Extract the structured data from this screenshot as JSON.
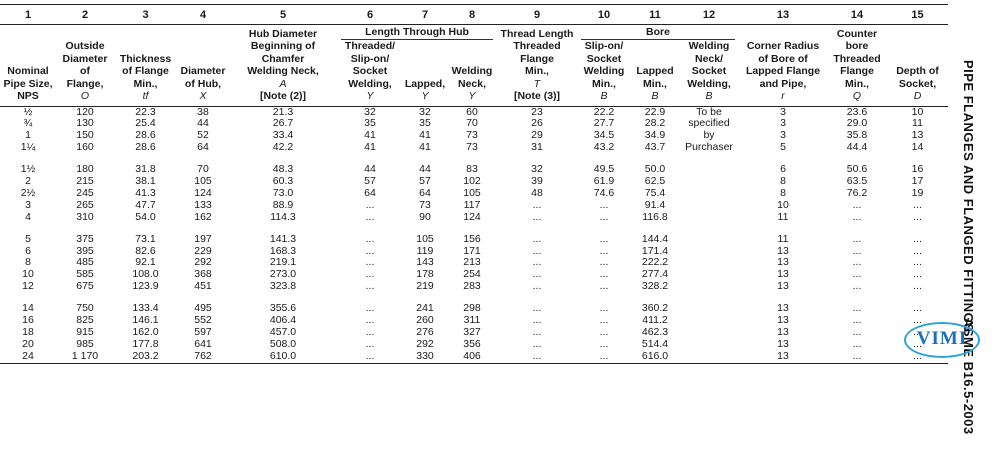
{
  "col_numbers": [
    "1",
    "2",
    "3",
    "4",
    "5",
    "6",
    "7",
    "8",
    "9",
    "10",
    "11",
    "12",
    "13",
    "14",
    "15"
  ],
  "groups": {
    "length_through_hub": "Length Through Hub",
    "bore": "Bore"
  },
  "headers": {
    "c1": {
      "lines": [
        "Nominal",
        "Pipe Size,",
        "NPS"
      ],
      "sym": ""
    },
    "c2": {
      "lines": [
        "Outside",
        "Diameter",
        "of",
        "Flange,"
      ],
      "sym": "O"
    },
    "c3": {
      "lines": [
        "Thickness",
        "of Flange",
        "Min.,"
      ],
      "sym": "tf"
    },
    "c4": {
      "lines": [
        "Diameter",
        "of Hub,"
      ],
      "sym": "X"
    },
    "c5": {
      "lines": [
        "Hub Diameter",
        "Beginning of",
        "Chamfer",
        "Welding Neck,"
      ],
      "sym": "A",
      "note": "[Note (2)]"
    },
    "c6": {
      "lines": [
        "Threaded/",
        "Slip-on/",
        "Socket",
        "Welding,"
      ],
      "sym": "Y"
    },
    "c7": {
      "lines": [
        "Lapped,"
      ],
      "sym": "Y"
    },
    "c8": {
      "lines": [
        "Welding",
        "Neck,"
      ],
      "sym": "Y"
    },
    "c9": {
      "lines": [
        "Thread Length",
        "Threaded",
        "Flange",
        "Min.,"
      ],
      "sym": "T",
      "note": "[Note (3)]"
    },
    "c10": {
      "lines": [
        "Slip-on/",
        "Socket",
        "Welding",
        "Min.,"
      ],
      "sym": "B"
    },
    "c11": {
      "lines": [
        "Lapped",
        "Min.,"
      ],
      "sym": "B"
    },
    "c12": {
      "lines": [
        "Welding",
        "Neck/",
        "Socket",
        "Welding,"
      ],
      "sym": "B"
    },
    "c13": {
      "lines": [
        "Corner Radius",
        "of Bore of",
        "Lapped Flange",
        "and Pipe,"
      ],
      "sym": "r"
    },
    "c14": {
      "lines": [
        "Counter",
        "bore",
        "Threaded",
        "Flange",
        "Min.,"
      ],
      "sym": "Q"
    },
    "c15": {
      "lines": [
        "Depth of",
        "Socket,"
      ],
      "sym": "D"
    }
  },
  "c12_note": [
    "To be",
    "specified",
    "by",
    "Purchaser"
  ],
  "rows": [
    [
      "½",
      "120",
      "22.3",
      "38",
      "21.3",
      "32",
      "32",
      "60",
      "23",
      "22.2",
      "22.9",
      "",
      "3",
      "23.6",
      "10"
    ],
    [
      "¾",
      "130",
      "25.4",
      "44",
      "26.7",
      "35",
      "35",
      "70",
      "26",
      "27.7",
      "28.2",
      "",
      "3",
      "29.0",
      "11"
    ],
    [
      "1",
      "150",
      "28.6",
      "52",
      "33.4",
      "41",
      "41",
      "73",
      "29",
      "34.5",
      "34.9",
      "",
      "3",
      "35.8",
      "13"
    ],
    [
      "1¼",
      "160",
      "28.6",
      "64",
      "42.2",
      "41",
      "41",
      "73",
      "31",
      "43.2",
      "43.7",
      "",
      "5",
      "44.4",
      "14"
    ],
    null,
    [
      "1½",
      "180",
      "31.8",
      "70",
      "48.3",
      "44",
      "44",
      "83",
      "32",
      "49.5",
      "50.0",
      "",
      "6",
      "50.6",
      "16"
    ],
    [
      "2",
      "215",
      "38.1",
      "105",
      "60.3",
      "57",
      "57",
      "102",
      "39",
      "61.9",
      "62.5",
      "",
      "8",
      "63.5",
      "17"
    ],
    [
      "2½",
      "245",
      "41.3",
      "124",
      "73.0",
      "64",
      "64",
      "105",
      "48",
      "74.6",
      "75.4",
      "",
      "8",
      "76.2",
      "19"
    ],
    [
      "3",
      "265",
      "47.7",
      "133",
      "88.9",
      "...",
      "73",
      "117",
      "...",
      "...",
      "91.4",
      "",
      "10",
      "...",
      "..."
    ],
    [
      "4",
      "310",
      "54.0",
      "162",
      "114.3",
      "...",
      "90",
      "124",
      "...",
      "...",
      "116.8",
      "",
      "11",
      "...",
      "..."
    ],
    null,
    [
      "5",
      "375",
      "73.1",
      "197",
      "141.3",
      "...",
      "105",
      "156",
      "...",
      "...",
      "144.4",
      "",
      "11",
      "...",
      "..."
    ],
    [
      "6",
      "395",
      "82.6",
      "229",
      "168.3",
      "...",
      "119",
      "171",
      "...",
      "...",
      "171.4",
      "",
      "13",
      "...",
      "..."
    ],
    [
      "8",
      "485",
      "92.1",
      "292",
      "219.1",
      "...",
      "143",
      "213",
      "...",
      "...",
      "222.2",
      "",
      "13",
      "...",
      "..."
    ],
    [
      "10",
      "585",
      "108.0",
      "368",
      "273.0",
      "...",
      "178",
      "254",
      "...",
      "...",
      "277.4",
      "",
      "13",
      "...",
      "..."
    ],
    [
      "12",
      "675",
      "123.9",
      "451",
      "323.8",
      "...",
      "219",
      "283",
      "...",
      "...",
      "328.2",
      "",
      "13",
      "...",
      "..."
    ],
    null,
    [
      "14",
      "750",
      "133.4",
      "495",
      "355.6",
      "...",
      "241",
      "298",
      "...",
      "...",
      "360.2",
      "",
      "13",
      "...",
      "..."
    ],
    [
      "16",
      "825",
      "146.1",
      "552",
      "406.4",
      "...",
      "260",
      "311",
      "...",
      "...",
      "411.2",
      "",
      "13",
      "...",
      "..."
    ],
    [
      "18",
      "915",
      "162.0",
      "597",
      "457.0",
      "...",
      "276",
      "327",
      "...",
      "...",
      "462.3",
      "",
      "13",
      "...",
      "..."
    ],
    [
      "20",
      "985",
      "177.8",
      "641",
      "508.0",
      "...",
      "292",
      "356",
      "...",
      "...",
      "514.4",
      "",
      "13",
      "...",
      "..."
    ],
    [
      "24",
      "1 170",
      "203.2",
      "762",
      "610.0",
      "...",
      "330",
      "406",
      "...",
      "...",
      "616.0",
      "",
      "13",
      "...",
      "..."
    ]
  ],
  "side_title_1": "PIPE FLANGES AND FLANGED FITTINGS",
  "side_title_2": "ASME B16.5-2003",
  "logo_text": "VIMI",
  "colors": {
    "logo_oval": "#2aa4dc",
    "logo_text": "#1a6fb8"
  }
}
